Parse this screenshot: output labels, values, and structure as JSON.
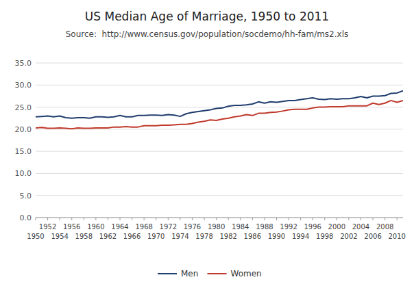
{
  "chart_data": {
    "type": "line",
    "title": "US Median Age of Marriage, 1950 to 2011",
    "subtitle": "Source:  http://www.census.gov/population/socdemo/hh-fam/ms2.xls",
    "x": [
      1950,
      1951,
      1952,
      1953,
      1954,
      1955,
      1956,
      1957,
      1958,
      1959,
      1960,
      1961,
      1962,
      1963,
      1964,
      1965,
      1966,
      1967,
      1968,
      1969,
      1970,
      1971,
      1972,
      1973,
      1974,
      1975,
      1976,
      1977,
      1978,
      1979,
      1980,
      1981,
      1982,
      1983,
      1984,
      1985,
      1986,
      1987,
      1988,
      1989,
      1990,
      1991,
      1992,
      1993,
      1994,
      1995,
      1996,
      1997,
      1998,
      1999,
      2000,
      2001,
      2002,
      2003,
      2004,
      2005,
      2006,
      2007,
      2008,
      2009,
      2010,
      2011
    ],
    "series": [
      {
        "name": "Men",
        "color": "#1f3d6e",
        "values": [
          22.8,
          22.9,
          23.0,
          22.8,
          23.0,
          22.6,
          22.5,
          22.6,
          22.6,
          22.5,
          22.8,
          22.8,
          22.7,
          22.8,
          23.1,
          22.8,
          22.8,
          23.1,
          23.1,
          23.2,
          23.2,
          23.1,
          23.3,
          23.2,
          22.9,
          23.5,
          23.8,
          24.0,
          24.2,
          24.4,
          24.7,
          24.8,
          25.2,
          25.4,
          25.4,
          25.5,
          25.7,
          26.2,
          25.9,
          26.2,
          26.1,
          26.3,
          26.5,
          26.5,
          26.7,
          26.9,
          27.1,
          26.8,
          26.7,
          26.9,
          26.8,
          26.9,
          26.9,
          27.1,
          27.4,
          27.1,
          27.5,
          27.5,
          27.6,
          28.1,
          28.2,
          28.7
        ]
      },
      {
        "name": "Women",
        "color": "#c0392b",
        "values": [
          20.3,
          20.4,
          20.2,
          20.2,
          20.3,
          20.2,
          20.1,
          20.3,
          20.2,
          20.2,
          20.3,
          20.3,
          20.3,
          20.5,
          20.5,
          20.6,
          20.5,
          20.5,
          20.8,
          20.8,
          20.8,
          20.9,
          20.9,
          21.0,
          21.1,
          21.1,
          21.3,
          21.6,
          21.8,
          22.1,
          22.0,
          22.3,
          22.5,
          22.8,
          23.0,
          23.3,
          23.1,
          23.6,
          23.6,
          23.8,
          23.9,
          24.1,
          24.4,
          24.5,
          24.5,
          24.5,
          24.8,
          25.0,
          25.0,
          25.1,
          25.1,
          25.1,
          25.3,
          25.3,
          25.3,
          25.3,
          25.9,
          25.6,
          25.9,
          26.5,
          26.1,
          26.5
        ]
      }
    ],
    "xlim": [
      1950,
      2011
    ],
    "xticks": [
      1950,
      1952,
      1954,
      1956,
      1958,
      1960,
      1962,
      1964,
      1966,
      1968,
      1970,
      1972,
      1974,
      1976,
      1978,
      1980,
      1982,
      1984,
      1986,
      1988,
      1990,
      1992,
      1994,
      1996,
      1998,
      2000,
      2002,
      2004,
      2006,
      2008,
      2010
    ],
    "ylim": [
      0,
      35
    ],
    "yticks": [
      {
        "value": 0,
        "label": "0.0"
      },
      {
        "value": 5,
        "label": "5.0"
      },
      {
        "value": 10,
        "label": "10.0"
      },
      {
        "value": 15,
        "label": "15.0"
      },
      {
        "value": 20,
        "label": "20.0"
      },
      {
        "value": 25,
        "label": "25.0"
      },
      {
        "value": 30,
        "label": "30.0"
      },
      {
        "value": 35,
        "label": "35.0"
      }
    ],
    "grid": true,
    "legend": "bottom"
  }
}
